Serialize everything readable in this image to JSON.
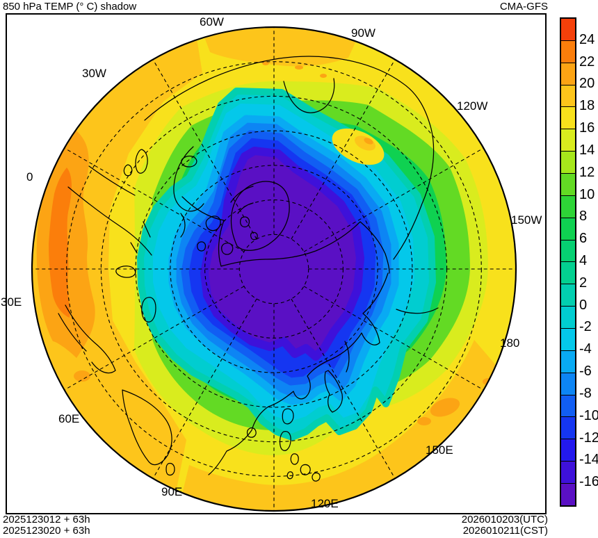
{
  "header": {
    "title": "850 hPa TEMP (° C) shadow",
    "model": "CMA-GFS"
  },
  "map": {
    "meridian_labels": [
      "60W",
      "90W",
      "120W",
      "150W",
      "180",
      "150E",
      "120E",
      "90E",
      "60E",
      "30E",
      "0",
      "30W"
    ]
  },
  "colorbar": {
    "tick_labels": [
      "24",
      "22",
      "20",
      "18",
      "16",
      "14",
      "12",
      "10",
      "8",
      "6",
      "4",
      "2",
      "0",
      "-2",
      "-4",
      "-6",
      "-8",
      "-10",
      "-12",
      "-14",
      "-16"
    ],
    "segment_colors_top_to_bottom": [
      "#f4400a",
      "#fb7e0b",
      "#fca414",
      "#fdc51b",
      "#f8e11c",
      "#d9ec1e",
      "#a6e71b",
      "#63da24",
      "#2ed437",
      "#0fd151",
      "#06d072",
      "#03d090",
      "#02cfb0",
      "#01cdd0",
      "#04c8ea",
      "#09aaf3",
      "#0d85f4",
      "#115ef3",
      "#1536f1",
      "#2319ee",
      "#3e11da",
      "#5a10c4"
    ]
  },
  "footer": {
    "left_line1": "2025123012 + 63h",
    "left_line2": "2025123020 + 63h",
    "right_line1": "2026010203(UTC)",
    "right_line2": "2026010211(CST)"
  },
  "chart_data": {
    "type": "heatmap",
    "title": "850 hPa TEMP (° C) shadow",
    "model": "CMA-GFS",
    "units": "degC",
    "projection": "north polar stereographic, 120E at bottom, meridians every 30 deg, dashed latitude circles",
    "colorbar_levels": [
      24,
      22,
      20,
      18,
      16,
      14,
      12,
      10,
      8,
      6,
      4,
      2,
      0,
      -2,
      -4,
      -6,
      -8,
      -10,
      -12,
      -14,
      -16
    ],
    "meridian_labels": [
      "60W",
      "90W",
      "120W",
      "150W",
      "180",
      "150E",
      "120E",
      "90E",
      "60E",
      "30E",
      "0",
      "30W"
    ],
    "init_labels": [
      "2025123012 + 63h",
      "2025123020 + 63h"
    ],
    "valid_labels": [
      "2026010203(UTC)",
      "2026010211(CST)"
    ],
    "notable_features": [
      "Cold pool below -16 over the Arctic, centered near the pole and extending over the Canadian Arctic, Greenland side and central Siberia",
      "Cold tongue (-10 to 0) stretching south over northeast China, Korea and Japan",
      "Warmest air (20-24+) over the North Africa sector (0-30E) near the map rim",
      "Scattered 18-22 warm patches over the western Pacific near 150E and along the bottom rim",
      "Broad 14-18 yellow belt around the subtropical edge, green 6-14 belt in mid-latitudes"
    ]
  }
}
